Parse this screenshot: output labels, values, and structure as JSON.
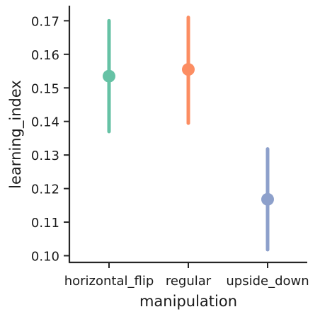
{
  "chart_data": {
    "type": "scatter",
    "title": "",
    "xlabel": "manipulation",
    "ylabel": "learning_index",
    "ylim": [
      0.098,
      0.1745
    ],
    "y_ticks": [
      0.1,
      0.11,
      0.12,
      0.13,
      0.14,
      0.15,
      0.16,
      0.17
    ],
    "y_tick_labels": [
      "0.10",
      "0.11",
      "0.12",
      "0.13",
      "0.14",
      "0.15",
      "0.16",
      "0.17"
    ],
    "categories": [
      "horizontal_flip",
      "regular",
      "upside_down"
    ],
    "points": [
      {
        "category": "horizontal_flip",
        "value": 0.1535,
        "ci_low": 0.137,
        "ci_high": 0.17,
        "color": "#66c2a5"
      },
      {
        "category": "regular",
        "value": 0.1555,
        "ci_low": 0.1395,
        "ci_high": 0.171,
        "color": "#fc8d62"
      },
      {
        "category": "upside_down",
        "value": 0.1168,
        "ci_low": 0.1018,
        "ci_high": 0.1318,
        "color": "#8da0cb"
      }
    ],
    "grid": false,
    "legend": "none"
  }
}
